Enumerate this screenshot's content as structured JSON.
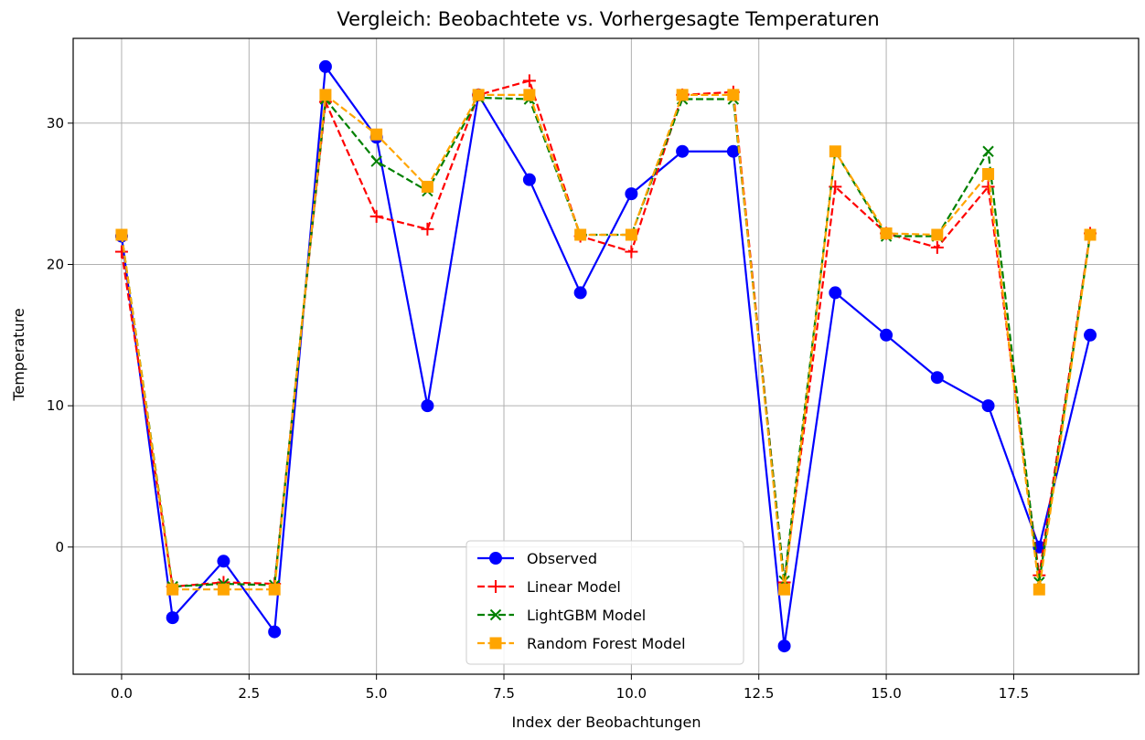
{
  "chart_data": {
    "type": "line",
    "title": "Vergleich: Beobachtete vs. Vorhergesagte Temperaturen",
    "xlabel": "Index der Beobachtungen",
    "ylabel": "Temperature",
    "xlim": [
      -0.95,
      19.95
    ],
    "ylim": [
      -9.0,
      36.0
    ],
    "xticks": [
      0.0,
      2.5,
      5.0,
      7.5,
      10.0,
      12.5,
      15.0,
      17.5
    ],
    "xtick_labels": [
      "0.0",
      "2.5",
      "5.0",
      "7.5",
      "10.0",
      "12.5",
      "15.0",
      "17.5"
    ],
    "yticks": [
      0,
      10,
      20,
      30
    ],
    "ytick_labels": [
      "0",
      "10",
      "20",
      "30"
    ],
    "grid": true,
    "legend_position": "lower-center",
    "x": [
      0,
      1,
      2,
      3,
      4,
      5,
      6,
      7,
      8,
      9,
      10,
      11,
      12,
      13,
      14,
      15,
      16,
      17,
      18,
      19
    ],
    "series": [
      {
        "name": "Observed",
        "color": "#0000ff",
        "linestyle": "solid",
        "marker": "circle",
        "values": [
          22,
          -5,
          -1,
          -6,
          34,
          29,
          10,
          32,
          26,
          18,
          25,
          28,
          28,
          -7,
          18,
          15,
          12,
          10,
          0,
          15
        ]
      },
      {
        "name": "Linear Model",
        "color": "#ff0000",
        "linestyle": "dashed",
        "marker": "plus",
        "values": [
          20.9,
          -2.8,
          -2.5,
          -2.6,
          31.5,
          23.4,
          22.5,
          32.0,
          33.0,
          22.0,
          20.9,
          32.0,
          32.2,
          -2.5,
          25.5,
          22.2,
          21.2,
          25.5,
          -2.0,
          22.2
        ]
      },
      {
        "name": "LightGBM Model",
        "color": "#008000",
        "linestyle": "dashed",
        "marker": "x",
        "values": [
          22.1,
          -2.8,
          -2.6,
          -2.7,
          31.7,
          27.3,
          25.2,
          31.8,
          31.7,
          22.1,
          22.1,
          31.7,
          31.7,
          -2.4,
          28.0,
          22.0,
          22.0,
          28.0,
          -2.5,
          22.1
        ]
      },
      {
        "name": "Random Forest Model",
        "color": "#ffa500",
        "linestyle": "dashed",
        "marker": "square",
        "values": [
          22.1,
          -3.0,
          -3.0,
          -3.0,
          32.0,
          29.2,
          25.5,
          32.0,
          32.0,
          22.1,
          22.1,
          32.0,
          32.0,
          -3.0,
          28.0,
          22.2,
          22.1,
          26.4,
          -3.0,
          22.1
        ]
      }
    ]
  }
}
